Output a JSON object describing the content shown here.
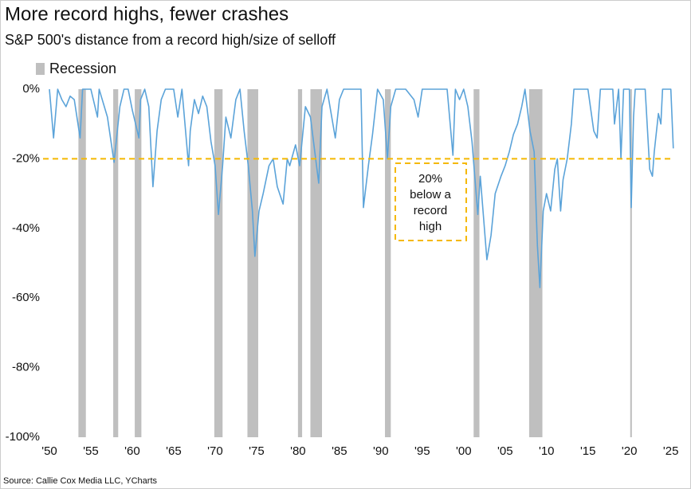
{
  "chart_data": {
    "type": "line",
    "title": "More record highs, fewer crashes",
    "subtitle": "S&P 500's distance from a record high/size of selloff",
    "source": "Source: Callie Cox Media LLC, YCharts",
    "color": "#5ba3d9",
    "x": [
      1950,
      1950.5,
      1951,
      1951.5,
      1952,
      1952.5,
      1953,
      1953.7,
      1954,
      1955,
      1955.8,
      1956,
      1956.5,
      1957,
      1957.8,
      1958.5,
      1959,
      1959.5,
      1960,
      1960.8,
      1961,
      1961.5,
      1962,
      1962.5,
      1963,
      1963.5,
      1964,
      1965,
      1965.5,
      1966,
      1966.8,
      1967,
      1967.5,
      1968,
      1968.5,
      1969,
      1969.5,
      1970,
      1970.4,
      1970.9,
      1971.3,
      1971.9,
      1972.5,
      1973,
      1973.5,
      1974,
      1974.5,
      1974.8,
      1975.3,
      1975.8,
      1976.5,
      1977,
      1977.5,
      1978.2,
      1978.7,
      1979,
      1979.7,
      1980.2,
      1980.9,
      1981.5,
      1982.5,
      1982.9,
      1983.5,
      1984.5,
      1985,
      1985.5,
      1986,
      1987,
      1987.6,
      1987.9,
      1988.5,
      1989,
      1989.6,
      1990.3,
      1990.8,
      1991.2,
      1991.8,
      1992,
      1993,
      1994,
      1994.5,
      1995,
      1996,
      1997,
      1998,
      1998.7,
      1999,
      1999.5,
      2000,
      2000.5,
      2001,
      2001.7,
      2002,
      2002.8,
      2003.3,
      2003.8,
      2004.5,
      2005,
      2005.5,
      2006,
      2006.5,
      2007,
      2007.4,
      2008,
      2008.5,
      2008.9,
      2009.2,
      2009.6,
      2010,
      2010.5,
      2011,
      2011.3,
      2011.7,
      2012,
      2012.5,
      2013,
      2013.3,
      2014,
      2015,
      2015.7,
      2016.1,
      2016.5,
      2017,
      2018,
      2018.2,
      2018.7,
      2018.98,
      2019.3,
      2020,
      2020.22,
      2020.5,
      2020.7,
      2021,
      2021.9,
      2022.45,
      2022.78,
      2023,
      2023.5,
      2023.8,
      2024,
      2024.5,
      2025,
      2025.3
    ],
    "values": [
      0,
      -14,
      0,
      -3,
      -5,
      -2,
      -3,
      -14,
      0,
      0,
      -8,
      0,
      -4,
      -8,
      -21,
      -5,
      0,
      0,
      -6,
      -14,
      -3,
      0,
      -5,
      -28,
      -12,
      -3,
      0,
      0,
      -8,
      0,
      -22,
      -12,
      -3,
      -7,
      -2,
      -5,
      -15,
      -22,
      -36,
      -22,
      -8,
      -14,
      -3,
      0,
      -12,
      -22,
      -35,
      -48,
      -35,
      -30,
      -22,
      -20,
      -28,
      -33,
      -20,
      -22,
      -16,
      -22,
      -5,
      -8,
      -27,
      -5,
      0,
      -14,
      -3,
      0,
      0,
      0,
      0,
      -34,
      -22,
      -13,
      0,
      -3,
      -20,
      -5,
      0,
      0,
      0,
      -3,
      -8,
      0,
      0,
      0,
      0,
      -19,
      0,
      -3,
      0,
      -5,
      -15,
      -36,
      -25,
      -49,
      -42,
      -30,
      -25,
      -22,
      -18,
      -13,
      -10,
      -5,
      0,
      -12,
      -18,
      -45,
      -57,
      -35,
      -30,
      -35,
      -23,
      -20,
      -35,
      -26,
      -20,
      -10,
      0,
      0,
      0,
      -12,
      -14,
      0,
      0,
      0,
      -10,
      0,
      -20,
      0,
      0,
      -34,
      -8,
      0,
      0,
      0,
      -23,
      -25,
      -18,
      -7,
      -10,
      0,
      0,
      0,
      -17
    ],
    "recessions": {
      "name": "Recession",
      "color": "#bfbfbf",
      "ranges": [
        [
          1953.5,
          1954.4
        ],
        [
          1957.7,
          1958.3
        ],
        [
          1960.3,
          1961.1
        ],
        [
          1969.9,
          1970.9
        ],
        [
          1973.9,
          1975.2
        ],
        [
          1980.0,
          1980.5
        ],
        [
          1981.5,
          1982.9
        ],
        [
          1990.5,
          1991.2
        ],
        [
          2001.2,
          2001.9
        ],
        [
          2007.9,
          2009.5
        ],
        [
          2020.1,
          2020.3
        ]
      ]
    },
    "threshold": {
      "value": -20,
      "color": "#f5b800",
      "lines": [
        "20%",
        "below a",
        "record",
        "high"
      ]
    },
    "xlim": [
      1950,
      2025.8
    ],
    "ylim": [
      -100,
      0
    ],
    "xticks": [
      {
        "value": 1950,
        "label": "'50"
      },
      {
        "value": 1955,
        "label": "'55"
      },
      {
        "value": 1960,
        "label": "'60"
      },
      {
        "value": 1965,
        "label": "'65"
      },
      {
        "value": 1970,
        "label": "'70"
      },
      {
        "value": 1975,
        "label": "'75"
      },
      {
        "value": 1980,
        "label": "'80"
      },
      {
        "value": 1985,
        "label": "'85"
      },
      {
        "value": 1990,
        "label": "'90"
      },
      {
        "value": 1995,
        "label": "'95"
      },
      {
        "value": 2000,
        "label": "'00"
      },
      {
        "value": 2005,
        "label": "'05"
      },
      {
        "value": 2010,
        "label": "'10"
      },
      {
        "value": 2015,
        "label": "'15"
      },
      {
        "value": 2020,
        "label": "'20"
      },
      {
        "value": 2025,
        "label": "'25"
      }
    ],
    "yticks": [
      {
        "value": 0,
        "label": "0%"
      },
      {
        "value": -20,
        "label": "-20%"
      },
      {
        "value": -40,
        "label": "-40%"
      },
      {
        "value": -60,
        "label": "-60%"
      },
      {
        "value": -80,
        "label": "-80%"
      },
      {
        "value": -100,
        "label": "-100%"
      }
    ]
  }
}
